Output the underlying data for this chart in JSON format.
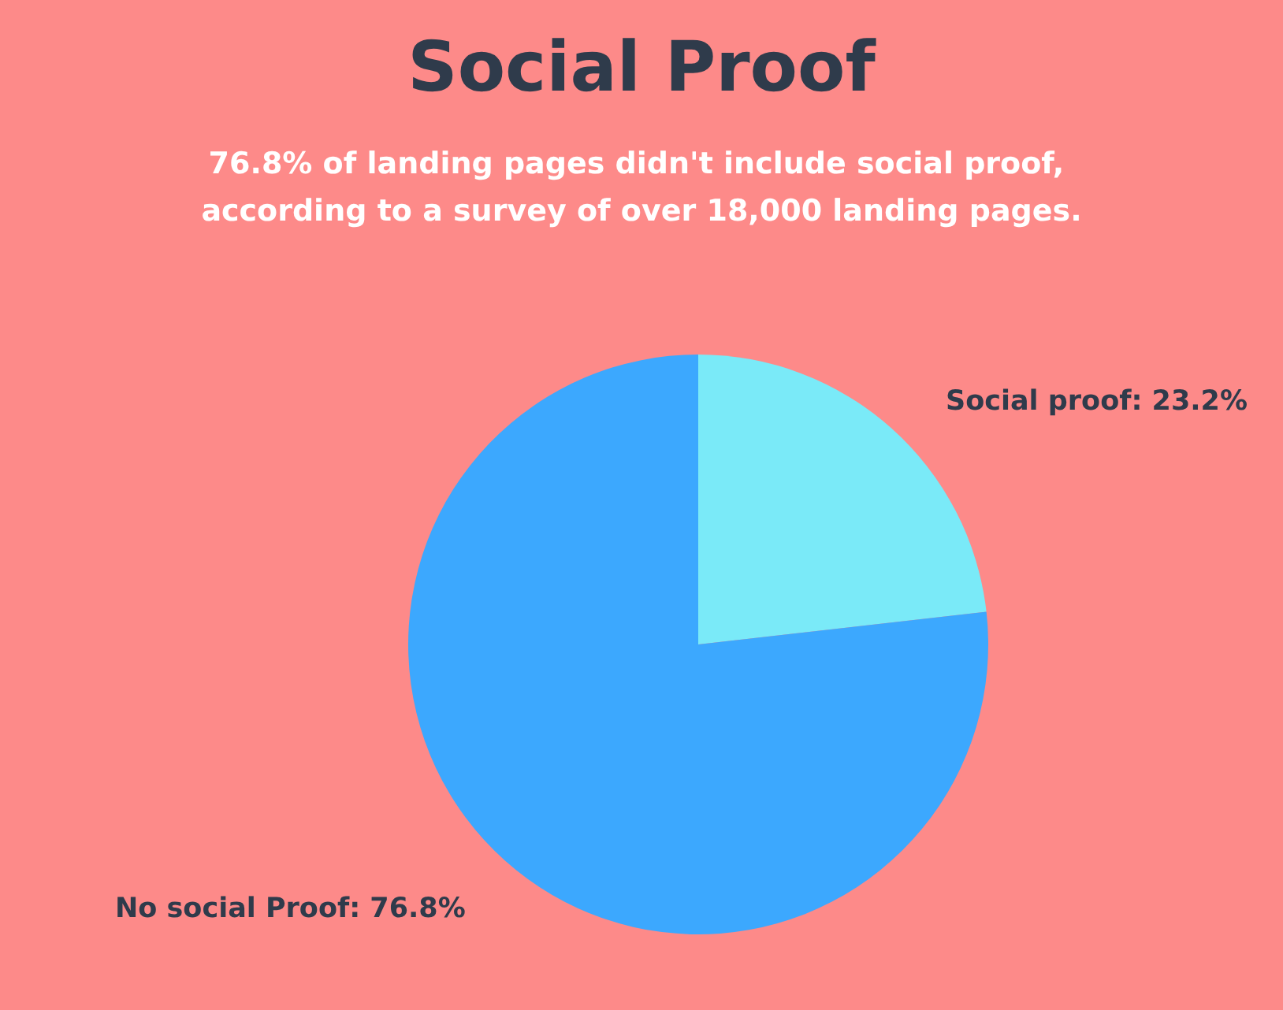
{
  "chart_data": {
    "type": "pie",
    "title": "Social Proof",
    "subtitle": "76.8% of landing pages didn't include social proof, according to a survey of over 18,000 landing pages.",
    "categories": [
      "Social proof",
      "No social Proof"
    ],
    "values": [
      23.2,
      76.8
    ],
    "colors": [
      "#7aeaf8",
      "#3ca8fe"
    ],
    "value_labels": [
      "23.2%",
      "76.8%"
    ]
  }
}
